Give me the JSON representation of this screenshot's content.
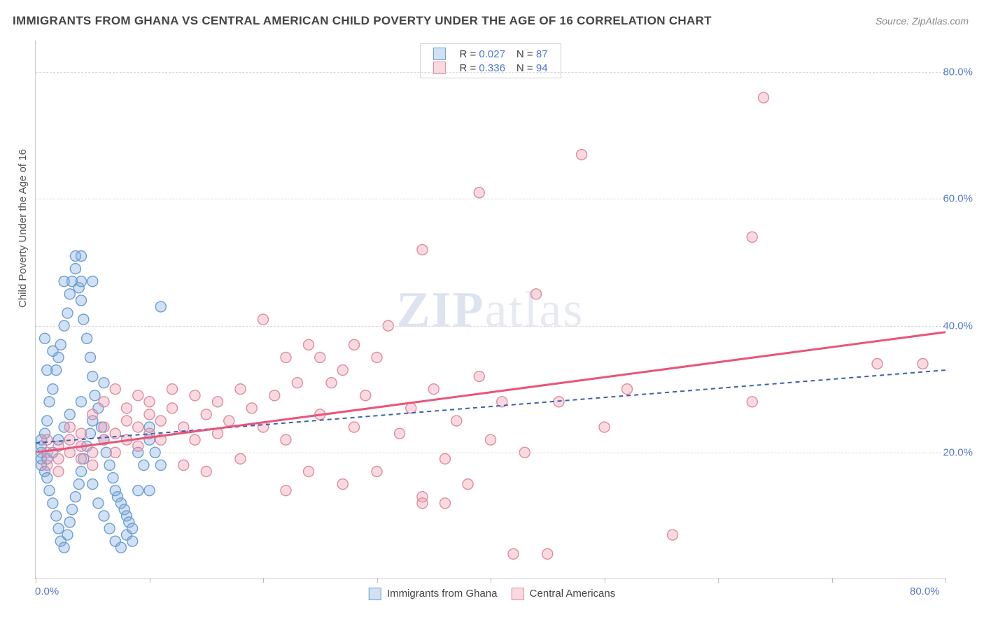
{
  "title": "IMMIGRANTS FROM GHANA VS CENTRAL AMERICAN CHILD POVERTY UNDER THE AGE OF 16 CORRELATION CHART",
  "source": "Source: ZipAtlas.com",
  "y_axis_label": "Child Poverty Under the Age of 16",
  "watermark_a": "ZIP",
  "watermark_b": "atlas",
  "chart": {
    "type": "scatter",
    "xlim": [
      0,
      80
    ],
    "ylim": [
      0,
      85
    ],
    "x_ticks": [
      0,
      10,
      20,
      30,
      40,
      50,
      60,
      70,
      80
    ],
    "x_tick_labels": {
      "0": "0.0%",
      "80": "80.0%"
    },
    "y_grid": [
      20,
      40,
      60,
      80
    ],
    "y_tick_labels": {
      "20": "20.0%",
      "40": "40.0%",
      "60": "60.0%",
      "80": "80.0%"
    },
    "background_color": "#ffffff",
    "grid_color": "#d8d8d8",
    "marker_radius": 7.5,
    "marker_stroke_width": 1.4,
    "series": [
      {
        "name": "Immigrants from Ghana",
        "fill": "rgba(122,168,222,0.35)",
        "stroke": "#6a9fd4",
        "r_value": "0.027",
        "n_value": "87",
        "trend": {
          "x1": 0,
          "y1": 21.5,
          "x2": 80,
          "y2": 33,
          "color": "#3a60b0",
          "width": 2,
          "dash": "6 5"
        },
        "points": [
          [
            0.5,
            18
          ],
          [
            0.5,
            20
          ],
          [
            0.5,
            22
          ],
          [
            0.5,
            19
          ],
          [
            0.5,
            21
          ],
          [
            0.8,
            17
          ],
          [
            0.8,
            23
          ],
          [
            1,
            16
          ],
          [
            1,
            25
          ],
          [
            1,
            19
          ],
          [
            1.2,
            28
          ],
          [
            1.2,
            14
          ],
          [
            1.5,
            30
          ],
          [
            1.5,
            12
          ],
          [
            1.5,
            20
          ],
          [
            1.8,
            33
          ],
          [
            1.8,
            10
          ],
          [
            2,
            35
          ],
          [
            2,
            8
          ],
          [
            2,
            22
          ],
          [
            2.2,
            37
          ],
          [
            2.2,
            6
          ],
          [
            2.5,
            40
          ],
          [
            2.5,
            5
          ],
          [
            2.5,
            24
          ],
          [
            2.8,
            42
          ],
          [
            2.8,
            7
          ],
          [
            3,
            45
          ],
          [
            3,
            9
          ],
          [
            3,
            26
          ],
          [
            3.2,
            47
          ],
          [
            3.2,
            11
          ],
          [
            3.5,
            49
          ],
          [
            3.5,
            13
          ],
          [
            3.8,
            46
          ],
          [
            3.8,
            15
          ],
          [
            4,
            44
          ],
          [
            4,
            17
          ],
          [
            4,
            28
          ],
          [
            4.2,
            41
          ],
          [
            4.2,
            19
          ],
          [
            4.5,
            38
          ],
          [
            4.5,
            21
          ],
          [
            4.8,
            35
          ],
          [
            4.8,
            23
          ],
          [
            5,
            32
          ],
          [
            5,
            25
          ],
          [
            5,
            15
          ],
          [
            5.2,
            29
          ],
          [
            5.5,
            27
          ],
          [
            5.5,
            12
          ],
          [
            5.8,
            24
          ],
          [
            6,
            22
          ],
          [
            6,
            10
          ],
          [
            6,
            31
          ],
          [
            6.2,
            20
          ],
          [
            6.5,
            18
          ],
          [
            6.5,
            8
          ],
          [
            6.8,
            16
          ],
          [
            7,
            14
          ],
          [
            7,
            6
          ],
          [
            7.2,
            13
          ],
          [
            7.5,
            12
          ],
          [
            7.5,
            5
          ],
          [
            7.8,
            11
          ],
          [
            8,
            10
          ],
          [
            8,
            7
          ],
          [
            8.2,
            9
          ],
          [
            8.5,
            8
          ],
          [
            8.5,
            6
          ],
          [
            9,
            14
          ],
          [
            9,
            20
          ],
          [
            9.5,
            18
          ],
          [
            10,
            14
          ],
          [
            10,
            24
          ],
          [
            10,
            22
          ],
          [
            10.5,
            20
          ],
          [
            11,
            43
          ],
          [
            11,
            18
          ],
          [
            4,
            51
          ],
          [
            3.5,
            51
          ],
          [
            4,
            47
          ],
          [
            5,
            47
          ],
          [
            2.5,
            47
          ],
          [
            1,
            33
          ],
          [
            1.5,
            36
          ],
          [
            0.8,
            38
          ]
        ]
      },
      {
        "name": "Central Americans",
        "fill": "rgba(240,150,170,0.35)",
        "stroke": "#e08aa0",
        "r_value": "0.336",
        "n_value": "94",
        "trend": {
          "x1": 0,
          "y1": 20,
          "x2": 80,
          "y2": 39,
          "color": "#e8557a",
          "width": 3,
          "dash": "none"
        },
        "points": [
          [
            1,
            18
          ],
          [
            1,
            20
          ],
          [
            1,
            22
          ],
          [
            2,
            19
          ],
          [
            2,
            21
          ],
          [
            2,
            17
          ],
          [
            3,
            20
          ],
          [
            3,
            22
          ],
          [
            3,
            24
          ],
          [
            4,
            19
          ],
          [
            4,
            21
          ],
          [
            4,
            23
          ],
          [
            5,
            18
          ],
          [
            5,
            20
          ],
          [
            5,
            26
          ],
          [
            6,
            22
          ],
          [
            6,
            24
          ],
          [
            6,
            28
          ],
          [
            7,
            20
          ],
          [
            7,
            23
          ],
          [
            7,
            30
          ],
          [
            8,
            22
          ],
          [
            8,
            25
          ],
          [
            8,
            27
          ],
          [
            9,
            21
          ],
          [
            9,
            24
          ],
          [
            9,
            29
          ],
          [
            10,
            23
          ],
          [
            10,
            26
          ],
          [
            10,
            28
          ],
          [
            11,
            22
          ],
          [
            11,
            25
          ],
          [
            12,
            27
          ],
          [
            12,
            30
          ],
          [
            13,
            24
          ],
          [
            13,
            18
          ],
          [
            14,
            29
          ],
          [
            14,
            22
          ],
          [
            15,
            26
          ],
          [
            15,
            17
          ],
          [
            16,
            28
          ],
          [
            16,
            23
          ],
          [
            17,
            25
          ],
          [
            18,
            30
          ],
          [
            18,
            19
          ],
          [
            19,
            27
          ],
          [
            20,
            24
          ],
          [
            20,
            41
          ],
          [
            21,
            29
          ],
          [
            22,
            22
          ],
          [
            22,
            35
          ],
          [
            23,
            31
          ],
          [
            24,
            37
          ],
          [
            24,
            17
          ],
          [
            25,
            26
          ],
          [
            25,
            35
          ],
          [
            26,
            31
          ],
          [
            27,
            15
          ],
          [
            27,
            33
          ],
          [
            28,
            37
          ],
          [
            28,
            24
          ],
          [
            29,
            29
          ],
          [
            30,
            35
          ],
          [
            30,
            17
          ],
          [
            31,
            40
          ],
          [
            32,
            23
          ],
          [
            33,
            27
          ],
          [
            34,
            13
          ],
          [
            35,
            30
          ],
          [
            36,
            19
          ],
          [
            37,
            25
          ],
          [
            38,
            15
          ],
          [
            39,
            32
          ],
          [
            39,
            61
          ],
          [
            40,
            22
          ],
          [
            41,
            28
          ],
          [
            42,
            4
          ],
          [
            43,
            20
          ],
          [
            44,
            45
          ],
          [
            45,
            4
          ],
          [
            34,
            52
          ],
          [
            46,
            28
          ],
          [
            48,
            67
          ],
          [
            50,
            24
          ],
          [
            52,
            30
          ],
          [
            56,
            7
          ],
          [
            63,
            28
          ],
          [
            63,
            54
          ],
          [
            64,
            76
          ],
          [
            74,
            34
          ],
          [
            78,
            34
          ],
          [
            34,
            12
          ],
          [
            36,
            12
          ],
          [
            22,
            14
          ]
        ]
      }
    ]
  },
  "legend_bottom": {
    "series1_label": "Immigrants from Ghana",
    "series2_label": "Central Americans"
  },
  "legend_top": {
    "r_label": "R =",
    "n_label": "N ="
  }
}
